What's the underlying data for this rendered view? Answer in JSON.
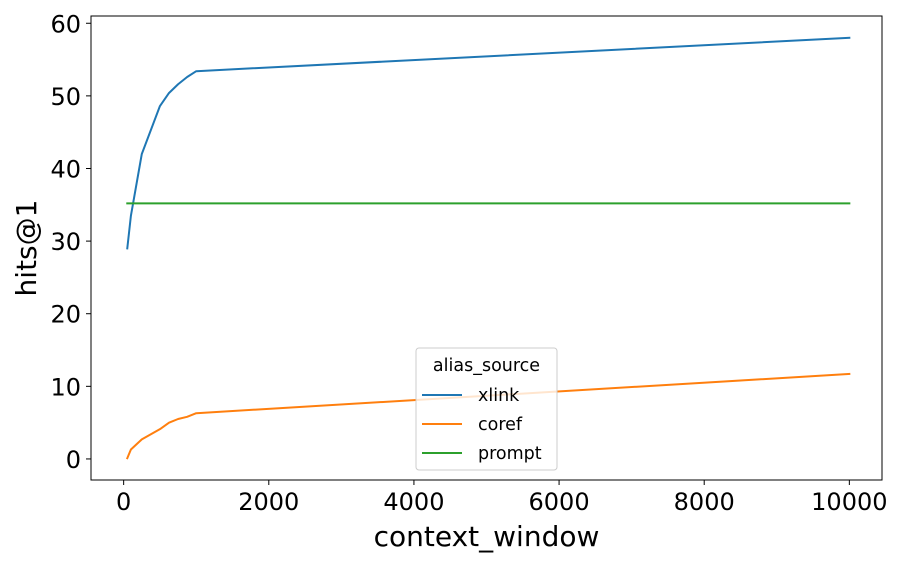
{
  "chart_data": {
    "type": "line",
    "xlabel": "context_window",
    "ylabel": "hits@1",
    "xlim": [
      -450,
      10450
    ],
    "ylim": [
      -2.9,
      61
    ],
    "xticks": [
      0,
      2000,
      4000,
      6000,
      8000,
      10000
    ],
    "yticks": [
      0,
      10,
      20,
      30,
      40,
      50,
      60
    ],
    "grid": false,
    "legend": {
      "title": "alias_source",
      "placement": "lower-center"
    },
    "series": [
      {
        "name": "xlink",
        "color": "#1f77b4",
        "x": [
          50,
          100,
          250,
          500,
          625,
          750,
          875,
          1000,
          10000
        ],
        "y": [
          29.0,
          33.5,
          42.0,
          48.6,
          50.4,
          51.6,
          52.6,
          53.4,
          58.0
        ]
      },
      {
        "name": "coref",
        "color": "#ff7f0e",
        "x": [
          50,
          100,
          250,
          500,
          625,
          750,
          875,
          1000,
          10000
        ],
        "y": [
          0.1,
          1.3,
          2.7,
          4.1,
          5.0,
          5.5,
          5.8,
          6.3,
          11.7
        ]
      },
      {
        "name": "prompt",
        "color": "#2ca02c",
        "x": [
          50,
          10000
        ],
        "y": [
          35.2,
          35.2
        ]
      }
    ]
  }
}
